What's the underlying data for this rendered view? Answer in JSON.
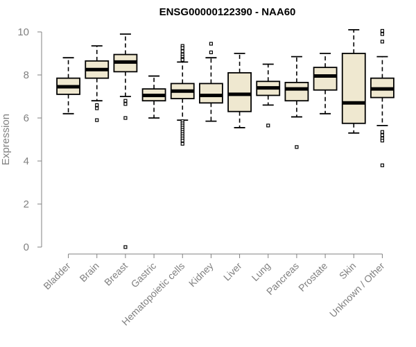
{
  "chart_data": {
    "type": "boxplot",
    "title": "ENSG00000122390 - NAA60",
    "ylabel": "Expression",
    "xlabel": "",
    "ylim": [
      0,
      10.3
    ],
    "yticks": [
      0,
      2,
      4,
      6,
      8,
      10
    ],
    "grid": false,
    "legend": "none",
    "colors": {
      "box_fill": "#efe8d0",
      "stroke": "#000000",
      "axis": "#808080"
    },
    "categories": [
      "Bladder",
      "Brain",
      "Breast",
      "Gastric",
      "Hematopoietic cells",
      "Kidney",
      "Liver",
      "Lung",
      "Pancreas",
      "Prostate",
      "Skin",
      "Unknown / Other"
    ],
    "boxes": [
      {
        "category": "Bladder",
        "whisker_low": 6.2,
        "q1": 7.1,
        "median": 7.45,
        "q3": 7.85,
        "whisker_high": 8.8,
        "outliers": []
      },
      {
        "category": "Brain",
        "whisker_low": 6.8,
        "q1": 7.85,
        "median": 8.25,
        "q3": 8.65,
        "whisker_high": 9.35,
        "outliers": [
          6.6,
          6.45,
          5.9
        ]
      },
      {
        "category": "Breast",
        "whisker_low": 7.0,
        "q1": 8.15,
        "median": 8.6,
        "q3": 8.95,
        "whisker_high": 9.9,
        "outliers": [
          6.8,
          6.65,
          6.0,
          0.0
        ]
      },
      {
        "category": "Gastric",
        "whisker_low": 6.0,
        "q1": 6.8,
        "median": 7.05,
        "q3": 7.35,
        "whisker_high": 7.95,
        "outliers": []
      },
      {
        "category": "Hematopoietic cells",
        "whisker_low": 5.9,
        "q1": 6.9,
        "median": 7.25,
        "q3": 7.6,
        "whisker_high": 8.6,
        "outliers": [
          9.35,
          9.25,
          9.1,
          8.95,
          8.85,
          8.75,
          8.7,
          5.85,
          5.75,
          5.65,
          5.55,
          5.45,
          5.35,
          5.25,
          5.15,
          5.05,
          4.95,
          4.8
        ]
      },
      {
        "category": "Kidney",
        "whisker_low": 5.85,
        "q1": 6.7,
        "median": 7.05,
        "q3": 7.6,
        "whisker_high": 8.8,
        "outliers": [
          9.45,
          9.05
        ]
      },
      {
        "category": "Liver",
        "whisker_low": 5.55,
        "q1": 6.3,
        "median": 7.1,
        "q3": 8.1,
        "whisker_high": 9.0,
        "outliers": []
      },
      {
        "category": "Lung",
        "whisker_low": 6.6,
        "q1": 7.05,
        "median": 7.4,
        "q3": 7.7,
        "whisker_high": 8.5,
        "outliers": [
          5.65
        ]
      },
      {
        "category": "Pancreas",
        "whisker_low": 6.05,
        "q1": 6.8,
        "median": 7.35,
        "q3": 7.65,
        "whisker_high": 8.85,
        "outliers": [
          4.65
        ]
      },
      {
        "category": "Prostate",
        "whisker_low": 6.2,
        "q1": 7.3,
        "median": 7.95,
        "q3": 8.35,
        "whisker_high": 9.0,
        "outliers": []
      },
      {
        "category": "Skin",
        "whisker_low": 5.3,
        "q1": 5.75,
        "median": 6.7,
        "q3": 9.0,
        "whisker_high": 10.1,
        "outliers": []
      },
      {
        "category": "Unknown / Other",
        "whisker_low": 5.65,
        "q1": 6.95,
        "median": 7.35,
        "q3": 7.85,
        "whisker_high": 8.85,
        "outliers": [
          10.05,
          9.9,
          9.55,
          5.35,
          5.2,
          5.05,
          4.95,
          3.8
        ]
      }
    ]
  }
}
